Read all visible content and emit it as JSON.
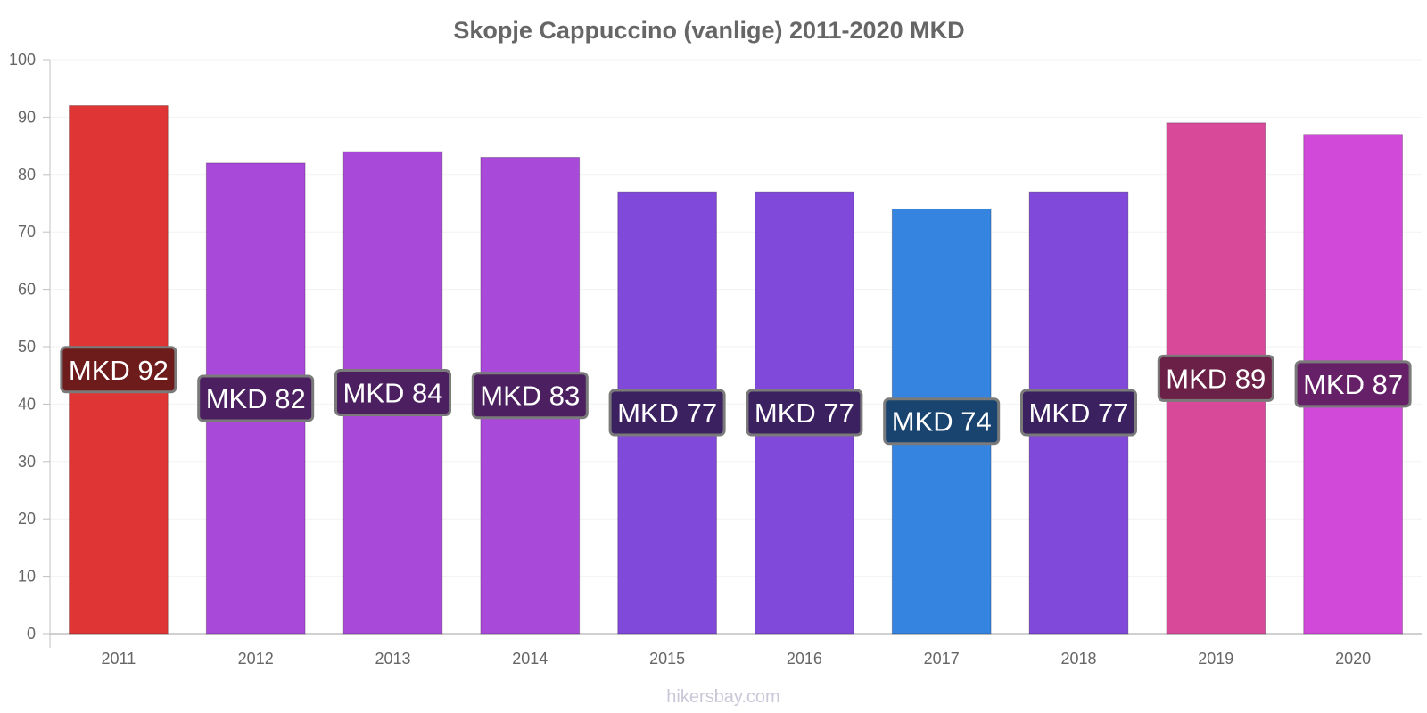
{
  "chart_data": {
    "type": "bar",
    "title": "Skopje Cappuccino (vanlige) 2011-2020 MKD",
    "xlabel": "",
    "ylabel": "",
    "ylim": [
      0,
      100
    ],
    "yticks": [
      0,
      10,
      20,
      30,
      40,
      50,
      60,
      70,
      80,
      90,
      100
    ],
    "categories": [
      "2011",
      "2012",
      "2013",
      "2014",
      "2015",
      "2016",
      "2017",
      "2018",
      "2019",
      "2020"
    ],
    "values": [
      92,
      82,
      84,
      83,
      77,
      77,
      74,
      77,
      89,
      87
    ],
    "data_labels": [
      "MKD 92",
      "MKD 82",
      "MKD 84",
      "MKD 83",
      "MKD 77",
      "MKD 77",
      "MKD 74",
      "MKD 77",
      "MKD 89",
      "MKD 87"
    ],
    "bar_colors": [
      "#e03535",
      "#a849d9",
      "#a849d9",
      "#a849d9",
      "#8049d9",
      "#8049d9",
      "#3584e0",
      "#8049d9",
      "#d9499a",
      "#d149d9"
    ],
    "label_bg_colors": [
      "#6e1b1b",
      "#4c2060",
      "#4c2060",
      "#4c2060",
      "#3b2160",
      "#3b2160",
      "#1a4470",
      "#3b2160",
      "#6a2047",
      "#662068"
    ],
    "grid": true,
    "legend": "none"
  },
  "watermark": "hikersbay.com"
}
